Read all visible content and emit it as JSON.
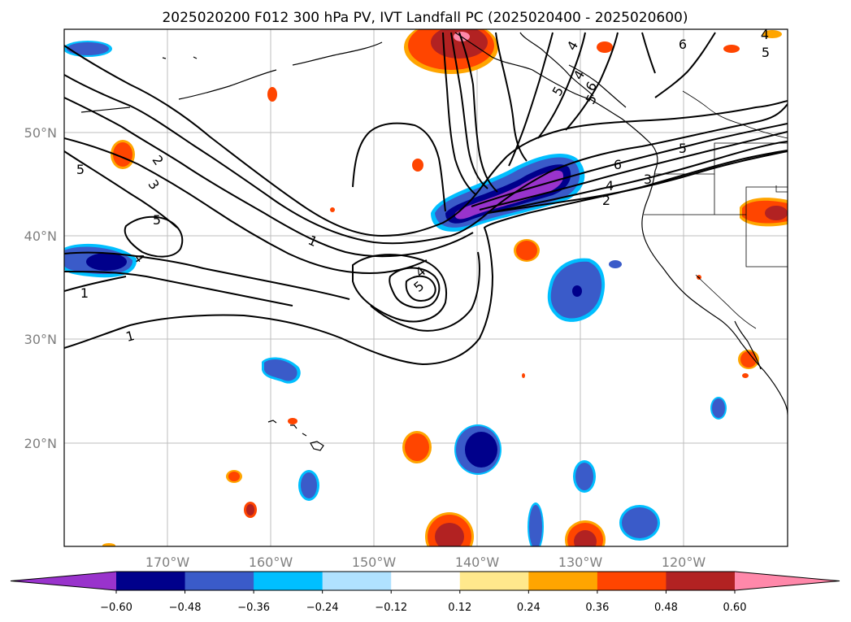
{
  "title": "2025020200 F012 300 hPa PV, IVT Landfall PC (2025020400 - 2025020600)",
  "map": {
    "lon_labels": [
      "170°W",
      "160°W",
      "150°W",
      "140°W",
      "130°W",
      "120°W"
    ],
    "lat_labels": [
      "50°N",
      "40°N",
      "30°N",
      "20°N"
    ],
    "contour_labels": [
      "1",
      "2",
      "3",
      "4",
      "5",
      "6",
      "1",
      "1",
      "5",
      "4",
      "5",
      "4",
      "5",
      "6",
      "4",
      "3",
      "2",
      "5",
      "4",
      "5",
      "6",
      "4",
      "5"
    ]
  },
  "colorbar": {
    "ticks": [
      "−0.60",
      "−0.48",
      "−0.36",
      "−0.24",
      "−0.12",
      "0.12",
      "0.24",
      "0.36",
      "0.48",
      "0.60"
    ],
    "colors": [
      "#9933cc",
      "#00008b",
      "#3a5bc9",
      "#00bfff",
      "#b0e2ff",
      "#ffffff",
      "#ffe88c",
      "#ffa500",
      "#ff4500",
      "#b22222",
      "#ff88aa"
    ]
  }
}
